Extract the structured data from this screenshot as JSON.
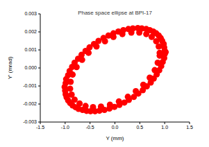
{
  "chart_data": {
    "type": "scatter",
    "title": "Phase space ellipse at BPI-17",
    "x_label": "Y (mm)",
    "y_label": "Y' (mrad)",
    "color": "#ff0000",
    "marker": "circle",
    "grid": false,
    "xlim": [
      -1.5,
      1.5
    ],
    "xticks": [
      -1.5,
      {
        "value": -1,
        "label": "-1.0"
      },
      -0.5,
      {
        "value": 0,
        "label": "0.0"
      },
      0.5,
      {
        "value": 1,
        "label": "1.0"
      },
      1.5
    ],
    "ylim": [
      -0.003,
      0.003
    ],
    "yticks": [
      -0.003,
      -0.002,
      -0.001,
      {
        "value": 0,
        "label": "0.000"
      },
      0.001,
      0.002,
      0.003
    ],
    "x": [
      1.0,
      0.98,
      0.92,
      0.83,
      0.7,
      0.54,
      0.36,
      0.17,
      -0.03,
      -0.23,
      -0.42,
      -0.59,
      -0.74,
      -0.86,
      -0.94,
      -0.99,
      -1.0,
      -0.97,
      -0.9,
      -0.79,
      -0.65,
      -0.49,
      -0.31,
      -0.11,
      0.09,
      0.28,
      0.47,
      0.64,
      0.78,
      0.89,
      0.96,
      1.0,
      0.9,
      0.88,
      0.83,
      0.74,
      0.63,
      0.49,
      0.33,
      0.15,
      -0.03,
      -0.2,
      -0.37,
      -0.53,
      -0.66,
      -0.77,
      -0.85,
      -0.89,
      -0.9,
      -0.87,
      -0.81,
      -0.71,
      -0.59,
      -0.44,
      -0.28,
      -0.1,
      0.08,
      0.26,
      0.42,
      0.57,
      0.7,
      0.8,
      0.86,
      0.9,
      0.99,
      0.95,
      0.88,
      0.77,
      0.63,
      0.46,
      0.27,
      0.07,
      -0.13,
      -0.33,
      -0.51,
      -0.67,
      -0.81,
      -0.91,
      -0.98,
      -1.01,
      -0.99,
      -0.94,
      -0.85,
      -0.73,
      -0.57,
      -0.4,
      -0.21,
      -0.01,
      0.19,
      0.38,
      0.56,
      0.72,
      0.84,
      0.93,
      0.99,
      1.02
    ],
    "values": [
      0.00094,
      0.00133,
      0.00166,
      0.00192,
      0.0021,
      0.00219,
      0.00219,
      0.0021,
      0.00192,
      0.00166,
      0.00133,
      0.00094,
      0.00051,
      6e-05,
      -0.0004,
      -0.00084,
      -0.00126,
      -0.00163,
      -0.00194,
      -0.00218,
      -0.00233,
      -0.0024,
      -0.00237,
      -0.00225,
      -0.00205,
      -0.00177,
      -0.00142,
      -0.00102,
      -0.00059,
      -0.00013,
      0.00033,
      0.00077,
      0.00084,
      0.00119,
      0.00148,
      0.00172,
      0.00188,
      0.00196,
      0.00196,
      0.00188,
      0.00172,
      0.00148,
      0.00119,
      0.00084,
      0.00045,
      5e-05,
      -0.00037,
      -0.00077,
      -0.00115,
      -0.00148,
      -0.00176,
      -0.00197,
      -0.00211,
      -0.00217,
      -0.00214,
      -0.00204,
      -0.00186,
      -0.0016,
      -0.00129,
      -0.00093,
      -0.00054,
      -0.00012,
      0.00029,
      0.00068,
      0.00114,
      0.0015,
      0.0018,
      0.00202,
      0.00216,
      0.00221,
      0.00216,
      0.00202,
      0.0018,
      0.0015,
      0.00114,
      0.00073,
      0.00029,
      -0.00017,
      -0.00062,
      -0.00106,
      -0.00146,
      -0.0018,
      -0.00208,
      -0.00227,
      -0.00238,
      -0.0024,
      -0.00233,
      -0.00216,
      -0.00192,
      -0.00161,
      -0.00123,
      -0.00081,
      -0.00036,
      0.0001,
      0.00055,
      0.00088
    ]
  }
}
